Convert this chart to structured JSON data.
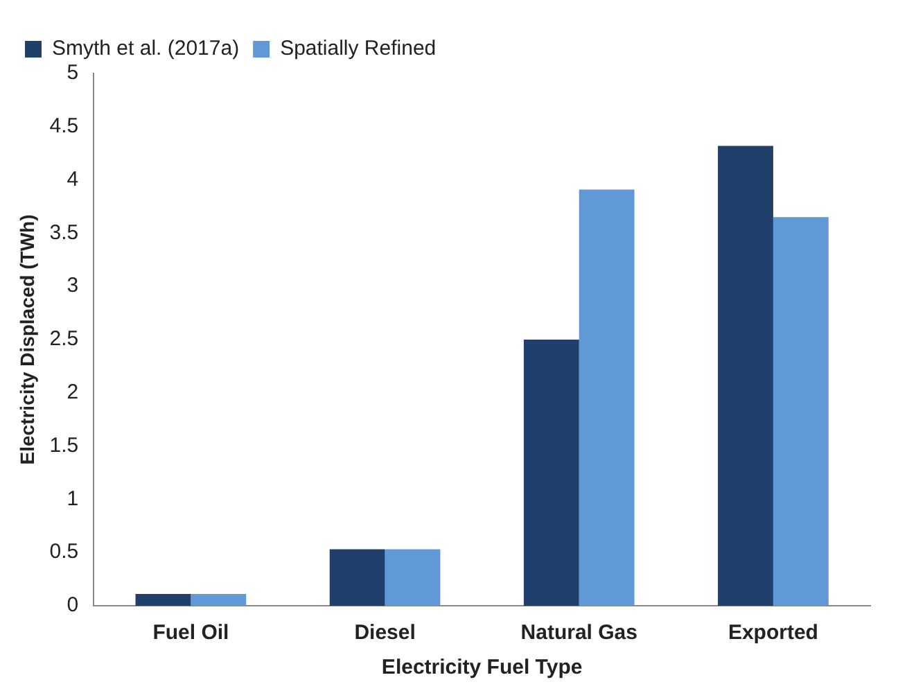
{
  "chart_data": {
    "type": "bar",
    "xlabel": "Electricity Fuel Type",
    "ylabel": "Electricity Displaced (TWh)",
    "categories": [
      "Fuel Oil",
      "Diesel",
      "Natural Gas",
      "Exported"
    ],
    "series": [
      {
        "name": "Smyth et al. (2017a)",
        "color": "#203f6a",
        "values": [
          0.11,
          0.53,
          2.5,
          4.32
        ]
      },
      {
        "name": "Spatially Refined",
        "color": "#6199d7",
        "values": [
          0.11,
          0.53,
          3.91,
          3.65
        ]
      }
    ],
    "ylim": [
      0,
      5
    ],
    "yticks": [
      0,
      0.5,
      1,
      1.5,
      2,
      2.5,
      3,
      3.5,
      4,
      4.5,
      5
    ],
    "grid": false,
    "legend": "top left"
  }
}
